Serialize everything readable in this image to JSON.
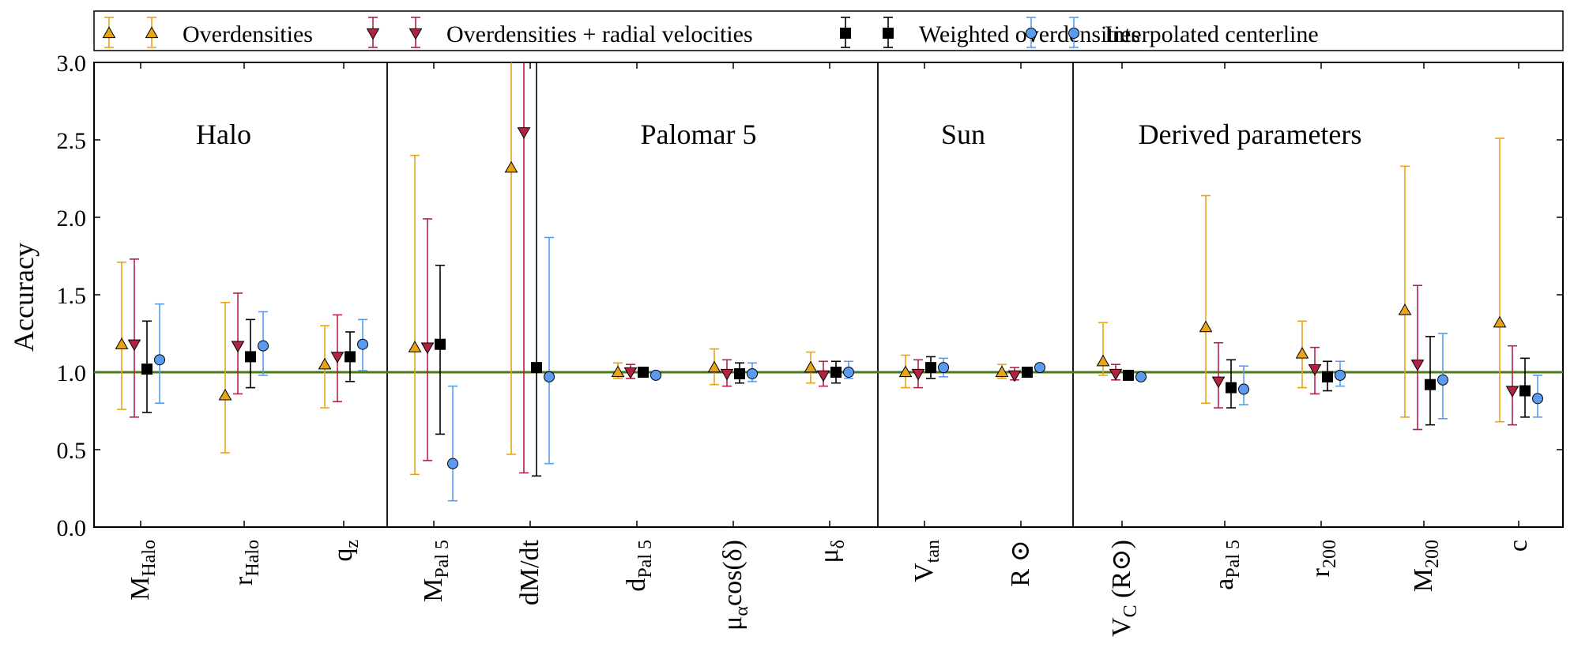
{
  "chart_data": {
    "type": "scatter",
    "ylabel": "Accuracy",
    "ylim": [
      0,
      3
    ],
    "yticks": [
      "0.0",
      "0.5",
      "1.0",
      "1.5",
      "2.0",
      "2.5",
      "3.0"
    ],
    "reference_line": 1.0,
    "colors": {
      "overdensities": "#e8a317",
      "radial": "#b22243",
      "weighted": "#000000",
      "interpolated": "#5b9bef",
      "reference": "#4a7a1a"
    },
    "legend": [
      {
        "id": "overdensities",
        "label": "Overdensities",
        "marker": "triangle-up"
      },
      {
        "id": "radial",
        "label": "Overdensities + radial velocities",
        "marker": "triangle-down"
      },
      {
        "id": "weighted",
        "label": "Weighted overdensities",
        "marker": "square"
      },
      {
        "id": "interpolated",
        "label": "Interpolated centerline",
        "marker": "circle"
      }
    ],
    "groups": [
      {
        "label": "Halo",
        "start": 0,
        "end": 3
      },
      {
        "label": "Palomar 5",
        "start": 3,
        "end": 8
      },
      {
        "label": "Sun",
        "start": 8,
        "end": 10
      },
      {
        "label": "Derived parameters",
        "start": 10,
        "end": 15
      }
    ],
    "parameters": [
      {
        "main": "M",
        "sub": "Halo"
      },
      {
        "main": "r",
        "sub": "Halo"
      },
      {
        "main": "q",
        "sub": "z"
      },
      {
        "main": "M",
        "sub": "Pal 5"
      },
      {
        "main": "dM/dt",
        "sub": ""
      },
      {
        "main": "d",
        "sub": "Pal 5"
      },
      {
        "main": "μ",
        "sub": "α",
        "suffix": "cos(δ)"
      },
      {
        "main": "μ",
        "sub": "δ"
      },
      {
        "main": "V",
        "sub": "tan"
      },
      {
        "main": "R ⊙",
        "sub": ""
      },
      {
        "main": "V",
        "sub": "C",
        "suffix": " (R⊙)"
      },
      {
        "main": "a",
        "sub": "Pal 5"
      },
      {
        "main": "r",
        "sub": "200"
      },
      {
        "main": "M",
        "sub": "200"
      },
      {
        "main": "c",
        "sub": ""
      }
    ],
    "series": [
      {
        "id": "overdensities",
        "name": "Overdensities",
        "values": [
          1.18,
          0.85,
          1.05,
          1.16,
          2.32,
          1.0,
          1.03,
          1.03,
          1.0,
          1.0,
          1.07,
          1.29,
          1.12,
          1.4,
          1.32
        ],
        "lower": [
          0.76,
          0.48,
          0.77,
          0.34,
          0.47,
          0.96,
          0.92,
          0.93,
          0.9,
          0.96,
          0.98,
          0.8,
          0.9,
          0.71,
          0.68
        ],
        "upper": [
          1.71,
          1.45,
          1.3,
          2.4,
          3.0,
          1.06,
          1.15,
          1.13,
          1.11,
          1.05,
          1.32,
          2.14,
          1.33,
          2.33,
          2.51
        ]
      },
      {
        "id": "radial",
        "name": "Overdensities + radial velocities",
        "values": [
          1.18,
          1.17,
          1.1,
          1.16,
          2.55,
          1.0,
          0.99,
          0.98,
          0.99,
          0.98,
          0.99,
          0.94,
          1.02,
          1.05,
          0.88
        ],
        "lower": [
          0.71,
          0.86,
          0.81,
          0.43,
          0.35,
          0.96,
          0.91,
          0.91,
          0.9,
          0.95,
          0.95,
          0.77,
          0.86,
          0.63,
          0.66
        ],
        "upper": [
          1.73,
          1.51,
          1.37,
          1.99,
          3.0,
          1.05,
          1.08,
          1.07,
          1.08,
          1.03,
          1.05,
          1.19,
          1.16,
          1.56,
          1.17
        ]
      },
      {
        "id": "weighted",
        "name": "Weighted overdensities",
        "values": [
          1.02,
          1.1,
          1.1,
          1.18,
          1.03,
          1.0,
          0.99,
          1.0,
          1.03,
          1.0,
          0.98,
          0.9,
          0.97,
          0.92,
          0.88
        ],
        "lower": [
          0.74,
          0.9,
          0.94,
          0.6,
          0.33,
          0.97,
          0.93,
          0.93,
          0.96,
          0.98,
          0.96,
          0.77,
          0.88,
          0.66,
          0.71
        ],
        "upper": [
          1.33,
          1.34,
          1.26,
          1.69,
          3.0,
          1.03,
          1.06,
          1.07,
          1.1,
          1.03,
          1.01,
          1.08,
          1.07,
          1.23,
          1.09
        ]
      },
      {
        "id": "interpolated",
        "name": "Interpolated centerline",
        "values": [
          1.08,
          1.17,
          1.18,
          0.41,
          0.97,
          0.98,
          0.99,
          1.0,
          1.03,
          1.03,
          0.97,
          0.89,
          0.98,
          0.95,
          0.83
        ],
        "lower": [
          0.8,
          0.98,
          1.01,
          0.17,
          0.41,
          0.97,
          0.94,
          0.96,
          0.97,
          1.01,
          0.96,
          0.79,
          0.91,
          0.7,
          0.71
        ],
        "upper": [
          1.44,
          1.39,
          1.34,
          0.91,
          1.87,
          1.0,
          1.06,
          1.07,
          1.09,
          1.05,
          0.99,
          1.04,
          1.07,
          1.25,
          0.98
        ]
      }
    ]
  }
}
